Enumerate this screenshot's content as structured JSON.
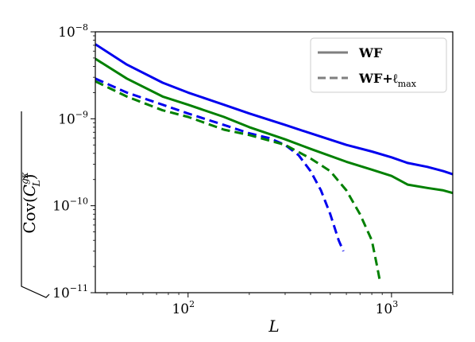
{
  "chart_data": {
    "type": "line",
    "xlabel": "L",
    "ylabel": "Cov(C_L^{gκ})",
    "xscale": "log",
    "yscale": "log",
    "xlim": [
      35,
      2000
    ],
    "ylim": [
      1e-11,
      1e-08
    ],
    "grid": false,
    "legend_position": "top-right",
    "x_ticks": [
      {
        "value": 100,
        "base": "10",
        "exp": "2"
      },
      {
        "value": 1000,
        "base": "10",
        "exp": "3"
      }
    ],
    "y_ticks": [
      {
        "value": 1e-11,
        "base": "10",
        "exp": "−11"
      },
      {
        "value": 1e-10,
        "base": "10",
        "exp": "−10"
      },
      {
        "value": 1e-09,
        "base": "10",
        "exp": "−9"
      },
      {
        "value": 1e-08,
        "base": "10",
        "exp": "−8"
      }
    ],
    "legend": [
      {
        "label": "WF",
        "style": "solid"
      },
      {
        "label": "WF+ℓ",
        "sub": "max",
        "style": "dashed"
      }
    ],
    "series": [
      {
        "color": "#0000ee",
        "style": "solid",
        "x": [
          35,
          50,
          75,
          100,
          150,
          200,
          300,
          400,
          600,
          800,
          1000,
          1200,
          1500,
          1800,
          2000
        ],
        "y": [
          7.2e-09,
          4.2e-09,
          2.6e-09,
          2e-09,
          1.45e-09,
          1.15e-09,
          8.5e-10,
          6.8e-10,
          5e-10,
          4.2e-10,
          3.6e-10,
          3.1e-10,
          2.8e-10,
          2.5e-10,
          2.3e-10
        ]
      },
      {
        "color": "#008000",
        "style": "solid",
        "x": [
          35,
          50,
          75,
          100,
          150,
          200,
          300,
          400,
          600,
          800,
          1000,
          1200,
          1500,
          1800,
          2000
        ],
        "y": [
          4.9e-09,
          2.9e-09,
          1.8e-09,
          1.45e-09,
          1.05e-09,
          8e-10,
          5.8e-10,
          4.5e-10,
          3.2e-10,
          2.6e-10,
          2.2e-10,
          1.75e-10,
          1.6e-10,
          1.5e-10,
          1.4e-10
        ]
      },
      {
        "color": "#0000ee",
        "style": "dashed",
        "x": [
          35,
          50,
          75,
          100,
          150,
          200,
          250,
          300,
          350,
          400,
          450,
          500,
          550,
          580
        ],
        "y": [
          2.9e-09,
          2e-09,
          1.45e-09,
          1.15e-09,
          8.5e-10,
          6.8e-10,
          6e-10,
          5e-10,
          3.8e-10,
          2.5e-10,
          1.5e-10,
          8e-11,
          4e-11,
          3e-11
        ]
      },
      {
        "color": "#008000",
        "style": "dashed",
        "x": [
          35,
          50,
          75,
          100,
          150,
          200,
          300,
          400,
          500,
          600,
          700,
          800,
          850,
          880
        ],
        "y": [
          2.7e-09,
          1.8e-09,
          1.25e-09,
          1.05e-09,
          7.5e-10,
          6.5e-10,
          5e-10,
          3.5e-10,
          2.5e-10,
          1.5e-10,
          8e-11,
          4e-11,
          2e-11,
          1.3e-11
        ]
      }
    ]
  }
}
